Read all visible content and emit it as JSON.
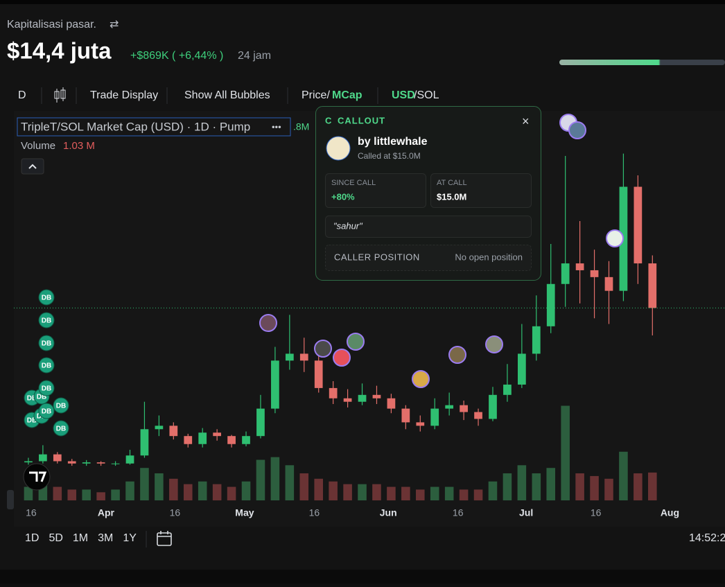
{
  "header": {
    "label": "Kapitalisasi pasar.",
    "swap_icon": "⇄",
    "value": "$14,4 juta",
    "change": "+$869K ( +6,44% )",
    "period": "24 jam"
  },
  "toolbar": {
    "interval": "D",
    "trade_display": "Trade Display",
    "show_bubbles": "Show All Bubbles",
    "price": "Price/",
    "mcap": "MCap",
    "usd": "USD",
    "sol": "/SOL"
  },
  "legend": {
    "title": "TripleT/SOL Market Cap (USD) · 1D · Pump",
    "more": "•••",
    "clipped": ".8M",
    "volume": "Volume",
    "volume_value": "1.03 M"
  },
  "callout": {
    "icon": "C",
    "title": "CALLOUT",
    "close": "×",
    "author": "by littlewhale",
    "called_at": "Called at $15.0M",
    "since_call_label": "SINCE CALL",
    "since_call_value": "+80%",
    "at_call_label": "AT CALL",
    "at_call_value": "$15.0M",
    "quote": "\"sahur\"",
    "position_label": "CALLER POSITION",
    "position_value": "No open position"
  },
  "bubble_label": "DB",
  "ranges": [
    "1D",
    "5D",
    "1M",
    "3M",
    "1Y"
  ],
  "time": "14:52:2",
  "chart_data": {
    "type": "candlestick",
    "x": [
      0,
      1,
      2,
      3,
      4,
      5,
      6,
      7,
      8,
      9,
      10,
      11,
      12,
      13,
      14,
      15,
      16,
      17,
      18,
      19,
      20,
      21,
      22,
      23,
      24,
      25,
      26,
      27,
      28,
      29,
      30,
      31,
      32,
      33,
      34,
      35,
      36,
      37,
      38,
      39,
      40,
      41,
      42,
      43
    ],
    "open": [
      0.9,
      1.0,
      1.6,
      1.0,
      0.8,
      0.9,
      0.8,
      0.8,
      1.5,
      3.8,
      4.1,
      3.2,
      2.5,
      3.5,
      3.2,
      2.5,
      3.2,
      5.6,
      9.8,
      10.4,
      9.8,
      7.4,
      6.5,
      6.2,
      6.8,
      6.5,
      5.6,
      4.4,
      4.1,
      5.6,
      5.9,
      5.3,
      4.7,
      6.8,
      7.7,
      10.4,
      12.8,
      16.5,
      18.3,
      17.7,
      17.1,
      15.9,
      25.0,
      18.3
    ],
    "high": [
      1.3,
      2.4,
      1.8,
      1.2,
      1.1,
      1.0,
      1.0,
      2.0,
      6.2,
      5.0,
      4.4,
      3.4,
      3.9,
      3.8,
      3.3,
      3.6,
      6.8,
      11.0,
      13.8,
      11.8,
      10.6,
      8.0,
      7.3,
      7.8,
      7.6,
      6.9,
      5.9,
      5.0,
      6.5,
      7.0,
      6.3,
      5.6,
      7.5,
      9.5,
      13.0,
      15.5,
      20.0,
      27.7,
      22.0,
      19.5,
      18.5,
      27.9,
      26.0,
      19.0
    ],
    "low": [
      0.7,
      0.8,
      0.8,
      0.6,
      0.6,
      0.6,
      0.6,
      0.7,
      1.3,
      3.2,
      2.9,
      2.2,
      2.2,
      2.8,
      2.2,
      2.3,
      3.0,
      5.2,
      9.0,
      8.8,
      7.0,
      6.0,
      5.7,
      5.9,
      6.0,
      5.2,
      3.8,
      3.6,
      3.8,
      5.0,
      4.6,
      4.1,
      4.5,
      6.2,
      7.4,
      9.8,
      12.2,
      14.5,
      14.8,
      13.5,
      13.0,
      15.0,
      16.5,
      12.0
    ],
    "close": [
      1.0,
      1.6,
      1.0,
      0.8,
      0.9,
      0.8,
      0.8,
      1.5,
      3.8,
      4.1,
      3.2,
      2.5,
      3.5,
      3.2,
      2.5,
      3.2,
      5.6,
      9.8,
      10.4,
      9.8,
      7.4,
      6.5,
      6.2,
      6.8,
      6.5,
      5.6,
      4.4,
      4.1,
      5.6,
      5.9,
      5.3,
      4.7,
      6.8,
      7.7,
      10.4,
      12.8,
      16.5,
      18.3,
      17.7,
      17.1,
      15.9,
      25.0,
      18.3,
      14.4
    ],
    "volume": [
      0.5,
      0.6,
      0.5,
      0.4,
      0.4,
      0.3,
      0.4,
      0.7,
      1.2,
      1.0,
      0.8,
      0.6,
      0.7,
      0.6,
      0.5,
      0.7,
      1.5,
      1.6,
      1.3,
      1.0,
      0.8,
      0.7,
      0.6,
      0.6,
      0.6,
      0.5,
      0.5,
      0.4,
      0.5,
      0.5,
      0.4,
      0.4,
      0.7,
      1.0,
      1.3,
      1.0,
      1.2,
      3.5,
      1.0,
      0.9,
      0.8,
      1.8,
      1.0,
      1.03
    ],
    "up_color": "#2fbf71",
    "down_color": "#e36f6a",
    "up_volume_color": "#2c5e3e",
    "down_volume_color": "#6a3334",
    "ylim": [
      0,
      30
    ],
    "volume_lim": [
      0,
      4
    ],
    "xlim": [
      -1,
      48
    ],
    "xticks": [
      {
        "value": 0.19,
        "label": "16"
      },
      {
        "value": 5.35,
        "label": "Apr"
      },
      {
        "value": 10.1,
        "label": "16"
      },
      {
        "value": 14.9,
        "label": "May"
      },
      {
        "value": 19.7,
        "label": "16"
      },
      {
        "value": 24.8,
        "label": "Jun"
      },
      {
        "value": 29.6,
        "label": "16"
      },
      {
        "value": 34.3,
        "label": "Jul"
      },
      {
        "value": 39.1,
        "label": "16"
      },
      {
        "value": 44.2,
        "label": "Aug"
      }
    ]
  }
}
